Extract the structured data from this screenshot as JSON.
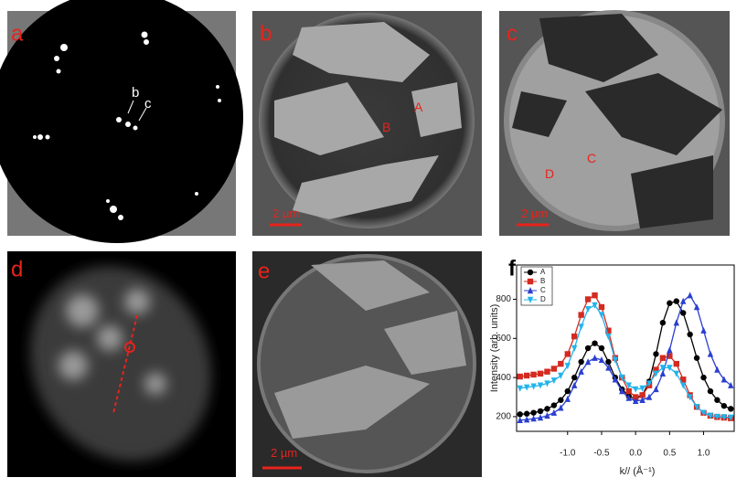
{
  "panels": [
    {
      "label": "a",
      "annotations": [
        "b",
        "c"
      ]
    },
    {
      "label": "b",
      "annotations": [
        "A",
        "B"
      ],
      "scale_bar": "2 µm"
    },
    {
      "label": "c",
      "annotations": [
        "C",
        "D"
      ],
      "scale_bar": "2 µm"
    },
    {
      "label": "d"
    },
    {
      "label": "e",
      "scale_bar": "2 µm"
    },
    {
      "label": "f"
    }
  ],
  "chart_data": {
    "type": "line",
    "x_label": "k// (Å⁻¹)",
    "y_label": "Intensity (arb. units)",
    "x": [
      -1.7,
      -1.6,
      -1.5,
      -1.4,
      -1.3,
      -1.2,
      -1.1,
      -1.0,
      -0.9,
      -0.8,
      -0.7,
      -0.6,
      -0.5,
      -0.4,
      -0.3,
      -0.2,
      -0.1,
      0.0,
      0.1,
      0.2,
      0.3,
      0.4,
      0.5,
      0.6,
      0.7,
      0.8,
      0.9,
      1.0,
      1.1,
      1.2,
      1.3,
      1.4
    ],
    "series": [
      {
        "name": "A",
        "color": "#000000",
        "marker": "circle",
        "values": [
          212,
          215,
          220,
          228,
          240,
          258,
          285,
          330,
          400,
          480,
          550,
          575,
          550,
          480,
          400,
          340,
          305,
          290,
          310,
          380,
          520,
          680,
          780,
          790,
          730,
          620,
          500,
          400,
          330,
          285,
          255,
          240
        ]
      },
      {
        "name": "B",
        "color": "#d42a20",
        "marker": "square",
        "values": [
          405,
          410,
          415,
          420,
          430,
          445,
          470,
          520,
          610,
          720,
          800,
          820,
          760,
          640,
          500,
          400,
          330,
          300,
          310,
          360,
          440,
          500,
          510,
          470,
          390,
          310,
          250,
          220,
          205,
          198,
          195,
          192
        ]
      },
      {
        "name": "C",
        "color": "#2a3fd0",
        "marker": "triangle",
        "values": [
          182,
          185,
          190,
          195,
          205,
          220,
          245,
          290,
          360,
          430,
          480,
          500,
          490,
          450,
          390,
          330,
          295,
          280,
          285,
          300,
          340,
          420,
          540,
          680,
          790,
          820,
          760,
          640,
          520,
          440,
          390,
          360
        ]
      },
      {
        "name": "D",
        "color": "#22b4ec",
        "marker": "triangle-down",
        "values": [
          345,
          350,
          355,
          360,
          370,
          385,
          410,
          460,
          550,
          660,
          750,
          770,
          720,
          610,
          490,
          400,
          360,
          340,
          345,
          370,
          420,
          450,
          450,
          420,
          360,
          300,
          250,
          220,
          205,
          200,
          198,
          196
        ]
      }
    ],
    "xlim": [
      -1.75,
      1.45
    ],
    "xticks": [
      {
        "value": -1,
        "label": "-1.0"
      },
      -0.5,
      {
        "value": 0,
        "label": "0.0"
      },
      0.5,
      {
        "value": 1,
        "label": "1.0"
      }
    ],
    "ylim": [
      125,
      975
    ],
    "yticks": [
      200,
      400,
      600,
      800
    ],
    "legend": "top-left"
  }
}
